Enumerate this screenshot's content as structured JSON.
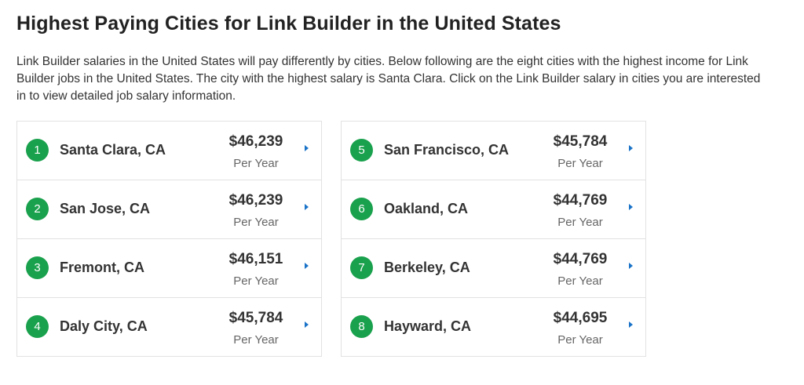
{
  "title": "Highest Paying Cities for Link Builder in the United States",
  "description": "Link Builder salaries in the United States will pay differently by cities. Below following are the eight cities with the highest income for Link Builder jobs in the United States. The city with the highest salary is Santa Clara. Click on the Link Builder salary in cities you are interested in to view detailed job salary information.",
  "colors": {
    "badge": "#1aa14d",
    "arrow": "#1a73c8"
  },
  "left_column": [
    {
      "rank": "1",
      "city": "Santa Clara, CA",
      "amount": "$46,239",
      "period": "Per Year"
    },
    {
      "rank": "2",
      "city": "San Jose, CA",
      "amount": "$46,239",
      "period": "Per Year"
    },
    {
      "rank": "3",
      "city": "Fremont, CA",
      "amount": "$46,151",
      "period": "Per Year"
    },
    {
      "rank": "4",
      "city": "Daly City, CA",
      "amount": "$45,784",
      "period": "Per Year"
    }
  ],
  "right_column": [
    {
      "rank": "5",
      "city": "San Francisco, CA",
      "amount": "$45,784",
      "period": "Per Year"
    },
    {
      "rank": "6",
      "city": "Oakland, CA",
      "amount": "$44,769",
      "period": "Per Year"
    },
    {
      "rank": "7",
      "city": "Berkeley, CA",
      "amount": "$44,769",
      "period": "Per Year"
    },
    {
      "rank": "8",
      "city": "Hayward, CA",
      "amount": "$44,695",
      "period": "Per Year"
    }
  ]
}
